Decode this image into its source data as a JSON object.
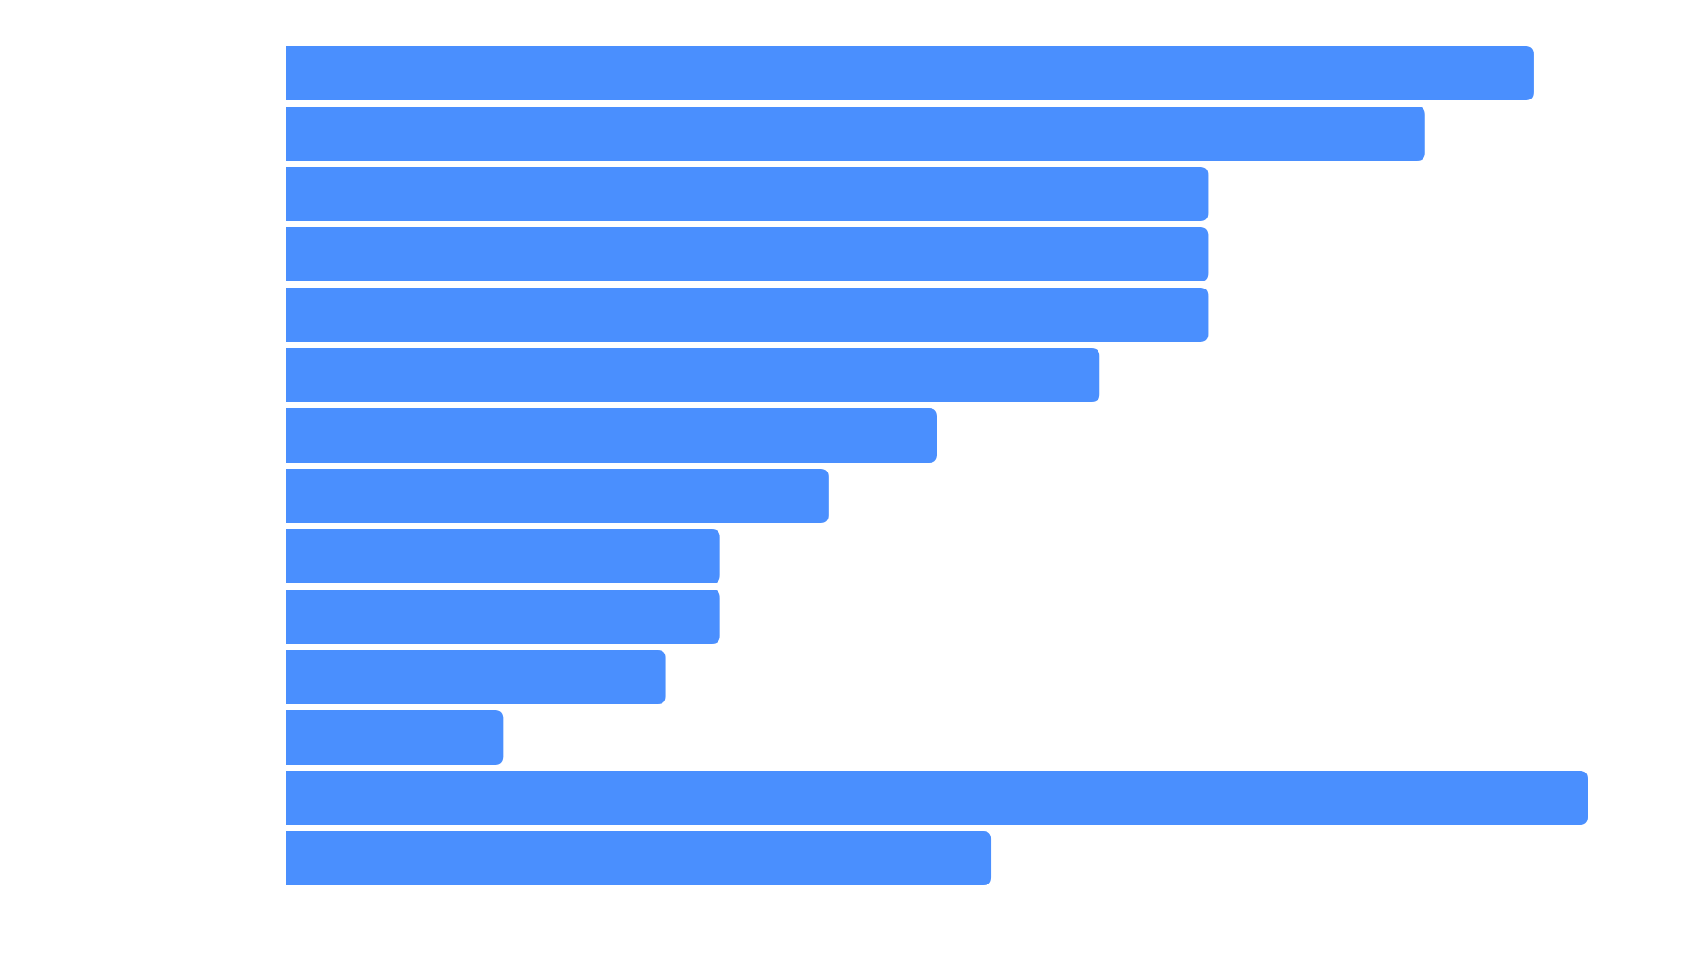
{
  "chart_data": {
    "type": "bar",
    "orientation": "horizontal",
    "categories": [
      "",
      "",
      "",
      "",
      "",
      "",
      "",
      "",
      "",
      "",
      "",
      "",
      "",
      ""
    ],
    "values": [
      23,
      21,
      17,
      17,
      17,
      15,
      12,
      10,
      8,
      8,
      7,
      4,
      24,
      13
    ],
    "xlim": [
      0,
      24
    ],
    "grid": false,
    "title": "",
    "xlabel": "",
    "ylabel": ""
  },
  "colors": {
    "bar": "#4a8ffe",
    "background": "#ffffff"
  }
}
